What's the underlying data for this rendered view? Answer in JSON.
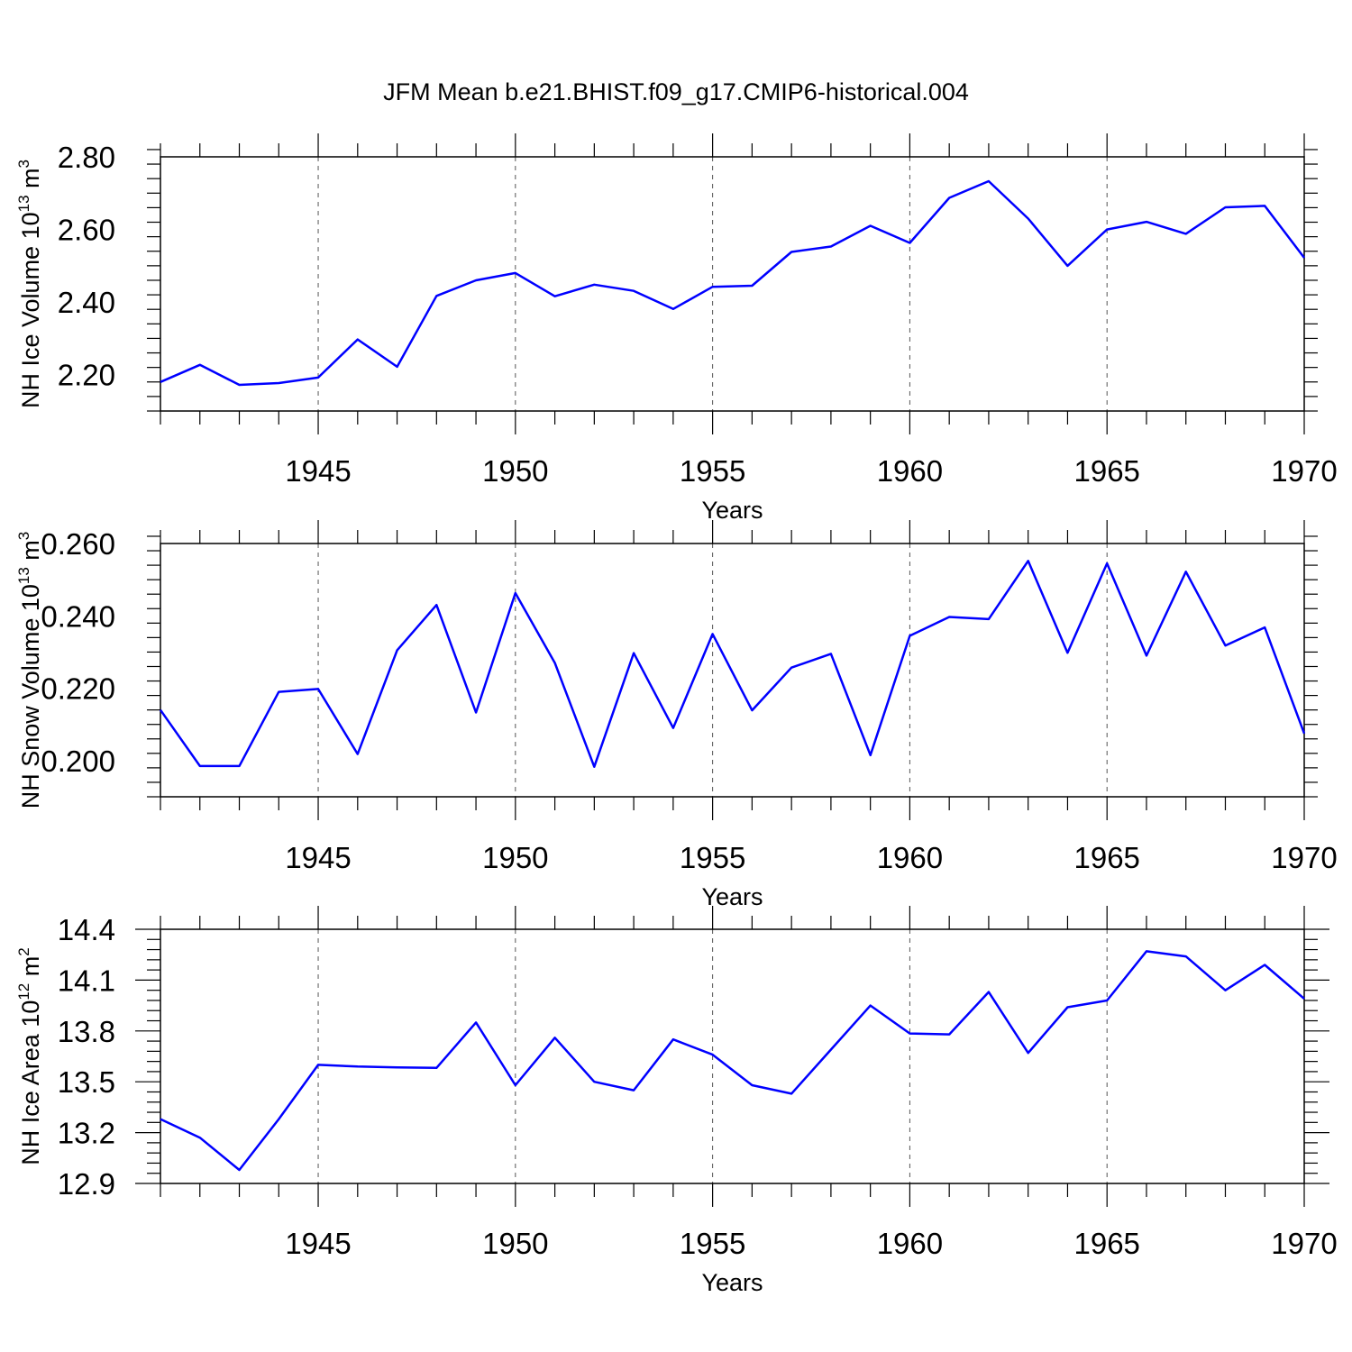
{
  "title": "JFM Mean b.e21.BHIST.f09_g17.CMIP6-historical.004",
  "colors": {
    "line": "#0000ff",
    "axis": "#000000",
    "grid": "#555555"
  },
  "chart_data": [
    {
      "type": "line",
      "ylabel": {
        "main": "NH Ice Volume 10",
        "exp": "13",
        "unit": " m",
        "unit_exp": "3"
      },
      "xlabel": "Years",
      "xlim": [
        1941,
        1970
      ],
      "ylim": [
        2.1,
        2.8
      ],
      "yticks": [
        "2.20",
        "2.40",
        "2.60",
        "2.80"
      ],
      "ytick_values": [
        2.2,
        2.4,
        2.6,
        2.8
      ],
      "xticks": [
        "1945",
        "1950",
        "1955",
        "1960",
        "1965",
        "1970"
      ],
      "xtick_values": [
        1945,
        1950,
        1955,
        1960,
        1965,
        1970
      ],
      "grid_x": [
        1945,
        1950,
        1955,
        1960,
        1965
      ],
      "x": [
        1941,
        1942,
        1943,
        1944,
        1945,
        1946,
        1947,
        1948,
        1949,
        1950,
        1951,
        1952,
        1953,
        1954,
        1955,
        1956,
        1957,
        1958,
        1959,
        1960,
        1961,
        1962,
        1963,
        1964,
        1965,
        1966,
        1967,
        1968,
        1969,
        1970
      ],
      "series": [
        {
          "name": "NH Ice Volume",
          "values": [
            2.18,
            2.227,
            2.172,
            2.177,
            2.192,
            2.297,
            2.222,
            2.417,
            2.46,
            2.48,
            2.416,
            2.448,
            2.431,
            2.381,
            2.442,
            2.445,
            2.538,
            2.553,
            2.61,
            2.563,
            2.687,
            2.733,
            2.63,
            2.5,
            2.6,
            2.621,
            2.588,
            2.661,
            2.665,
            2.522
          ]
        }
      ]
    },
    {
      "type": "line",
      "ylabel": {
        "main": "NH Snow Volume 10",
        "exp": "13",
        "unit": " m",
        "unit_exp": "3"
      },
      "xlabel": "Years",
      "xlim": [
        1941,
        1970
      ],
      "ylim": [
        0.19,
        0.26
      ],
      "yticks": [
        "0.200",
        "0.220",
        "0.240",
        "0.260"
      ],
      "ytick_values": [
        0.2,
        0.22,
        0.24,
        0.26
      ],
      "xticks": [
        "1945",
        "1950",
        "1955",
        "1960",
        "1965",
        "1970"
      ],
      "xtick_values": [
        1945,
        1950,
        1955,
        1960,
        1965,
        1970
      ],
      "grid_x": [
        1945,
        1950,
        1955,
        1960,
        1965
      ],
      "x": [
        1941,
        1942,
        1943,
        1944,
        1945,
        1946,
        1947,
        1948,
        1949,
        1950,
        1951,
        1952,
        1953,
        1954,
        1955,
        1956,
        1957,
        1958,
        1959,
        1960,
        1961,
        1962,
        1963,
        1964,
        1965,
        1966,
        1967,
        1968,
        1969,
        1970
      ],
      "series": [
        {
          "name": "NH Snow Volume",
          "values": [
            0.214,
            0.1985,
            0.1985,
            0.219,
            0.2198,
            0.2018,
            0.2305,
            0.243,
            0.2133,
            0.2463,
            0.227,
            0.1983,
            0.2297,
            0.209,
            0.235,
            0.2139,
            0.2257,
            0.2295,
            0.2015,
            0.2345,
            0.2397,
            0.2391,
            0.2552,
            0.2298,
            0.2545,
            0.229,
            0.2522,
            0.2318,
            0.2368,
            0.2075
          ]
        }
      ]
    },
    {
      "type": "line",
      "ylabel": {
        "main": "NH Ice Area 10",
        "exp": "12",
        "unit": " m",
        "unit_exp": "2"
      },
      "xlabel": "Years",
      "xlim": [
        1941,
        1970
      ],
      "ylim": [
        12.9,
        14.4
      ],
      "yticks": [
        "12.9",
        "13.2",
        "13.5",
        "13.8",
        "14.1",
        "14.4"
      ],
      "ytick_values": [
        12.9,
        13.2,
        13.5,
        13.8,
        14.1,
        14.4
      ],
      "xticks": [
        "1945",
        "1950",
        "1955",
        "1960",
        "1965",
        "1970"
      ],
      "xtick_values": [
        1945,
        1950,
        1955,
        1960,
        1965,
        1970
      ],
      "grid_x": [
        1945,
        1950,
        1955,
        1960,
        1965
      ],
      "x": [
        1941,
        1942,
        1943,
        1944,
        1945,
        1946,
        1947,
        1948,
        1949,
        1950,
        1951,
        1952,
        1953,
        1954,
        1955,
        1956,
        1957,
        1958,
        1959,
        1960,
        1961,
        1962,
        1963,
        1964,
        1965,
        1966,
        1967,
        1968,
        1969,
        1970
      ],
      "series": [
        {
          "name": "NH Ice Area",
          "values": [
            13.28,
            13.17,
            12.98,
            13.28,
            13.6,
            13.59,
            13.585,
            13.582,
            13.85,
            13.48,
            13.76,
            13.5,
            13.45,
            13.75,
            13.66,
            13.48,
            13.43,
            13.69,
            13.95,
            13.785,
            13.78,
            14.03,
            13.67,
            13.94,
            13.98,
            14.27,
            14.24,
            14.04,
            14.19,
            13.99
          ]
        }
      ]
    }
  ]
}
